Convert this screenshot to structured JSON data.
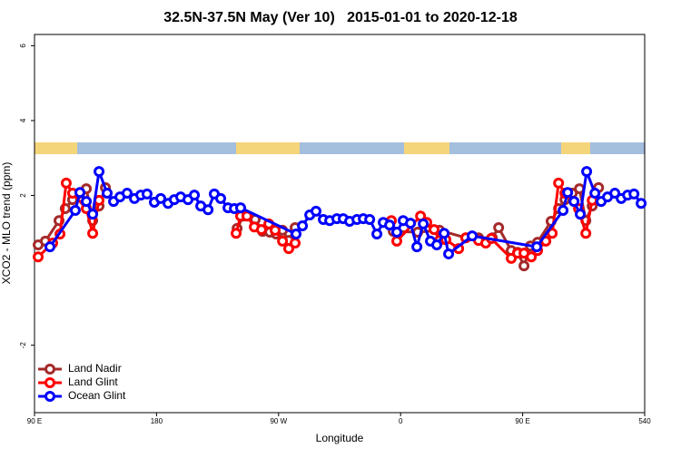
{
  "chart_data": {
    "type": "line",
    "title": "32.5N-37.5N May (Ver 10)   2015-01-01 to 2020-12-18",
    "xlabel": "Longitude",
    "ylabel": "XCO2 - MLO trend (ppm)",
    "xlim": [
      90,
      540
    ],
    "xticks": [
      {
        "value": 90,
        "label": "90 E"
      },
      180,
      {
        "value": 270,
        "label": "90 W"
      },
      {
        "value": 360,
        "label": "0"
      },
      {
        "value": 450,
        "label": "90 E"
      },
      540
    ],
    "ylim": [
      -3.8,
      6.3
    ],
    "yticks": [
      -2,
      2,
      4,
      6
    ],
    "legend": "bottomleft",
    "series": [
      {
        "name": "Land Nadir",
        "color": "#a52a2a",
        "x": [
          92.7,
          98,
          108.1,
          112.7,
          118.1,
          123.5,
          128.2,
          132.9,
          137.6,
          142.3,
          null,
          239.4,
          244.1,
          252.8,
          258.2,
          263.5,
          268.2,
          272.9,
          277.5,
          282.2,
          null,
          354.6,
          372.6,
          388.7,
          408.1,
          417.5,
          427.6,
          432.3,
          441.6,
          446.3,
          451,
          455.7,
          461,
          471,
          476.5,
          481.2,
          486.6,
          491.9,
          496.6,
          501.3,
          506
        ],
        "values": [
          0.68,
          0.78,
          1.33,
          1.65,
          1.89,
          2.06,
          2.18,
          1.33,
          1.72,
          2.21,
          null,
          1.12,
          1.45,
          1.36,
          1.04,
          1.02,
          0.97,
          1.07,
          0.8,
          1.14,
          null,
          1.04,
          1.02,
          1.07,
          0.87,
          0.87,
          0.87,
          1.14,
          0.53,
          0.48,
          0.12,
          0.65,
          0.75,
          1.31,
          1.65,
          1.89,
          2.06,
          2.18,
          1.33,
          1.72,
          2.21
        ]
      },
      {
        "name": "Land Glint",
        "color": "#ff0000",
        "x": [
          92.7,
          103.4,
          108.8,
          113.4,
          118.1,
          128.2,
          132.9,
          137.6,
          null,
          238.7,
          242,
          246.7,
          252.1,
          257.4,
          262.8,
          267.5,
          272.9,
          277.5,
          282.2,
          null,
          353.2,
          357.2,
          374.7,
          379.3,
          384.7,
          388.7,
          393.4,
          402.8,
          408.1,
          417.5,
          422.8,
          426.9,
          441.6,
          446.3,
          451,
          456.4,
          461,
          467.1,
          471.8,
          476.5,
          481.2,
          491.2,
          496.6,
          501.3
        ],
        "values": [
          0.36,
          0.73,
          0.97,
          2.33,
          2.06,
          1.65,
          0.99,
          1.87,
          null,
          0.99,
          1.45,
          1.45,
          1.16,
          1.09,
          1.24,
          1.07,
          0.78,
          0.58,
          0.73,
          null,
          1.33,
          0.78,
          1.45,
          1.28,
          1.09,
          0.8,
          0.82,
          0.58,
          0.87,
          0.8,
          0.73,
          0.85,
          0.32,
          0.46,
          0.46,
          0.36,
          0.53,
          0.78,
          0.99,
          2.33,
          2.06,
          1.65,
          0.99,
          1.87
        ]
      },
      {
        "name": "Ocean Glint",
        "color": "#0000ff",
        "x": [
          101.4,
          120.1,
          123.5,
          128.2,
          132.9,
          137.6,
          143.6,
          148.3,
          153,
          158.3,
          163.7,
          168.4,
          173,
          178.4,
          183.1,
          188.5,
          193.1,
          197.8,
          203.2,
          207.9,
          212.6,
          218,
          222.6,
          227.3,
          232.7,
          237.4,
          242,
          282.9,
          287.6,
          293,
          297.6,
          303,
          307.7,
          313,
          317.7,
          322.4,
          327.8,
          332.5,
          337.2,
          342.5,
          347.2,
          351.9,
          357.2,
          361.9,
          367.3,
          372,
          376.7,
          382,
          386.7,
          392.1,
          395.4,
          412.8,
          460.4,
          479.8,
          483.2,
          487.9,
          492.5,
          497.2,
          503.3,
          507.9,
          512.6,
          518,
          522.7,
          527.4,
          532.1,
          537.4
        ],
        "values": [
          0.63,
          1.6,
          2.08,
          1.84,
          1.5,
          2.64,
          2.06,
          1.84,
          1.96,
          2.06,
          1.92,
          2.01,
          2.04,
          1.82,
          1.92,
          1.79,
          1.89,
          1.96,
          1.89,
          2.01,
          1.72,
          1.62,
          2.04,
          1.92,
          1.67,
          1.65,
          1.67,
          0.97,
          1.19,
          1.48,
          1.58,
          1.36,
          1.33,
          1.38,
          1.38,
          1.31,
          1.36,
          1.38,
          1.36,
          0.97,
          1.28,
          1.21,
          1.02,
          1.33,
          1.26,
          0.63,
          1.24,
          0.78,
          0.68,
          0.99,
          0.44,
          0.92,
          0.63,
          1.6,
          2.08,
          1.84,
          1.5,
          2.64,
          2.06,
          1.84,
          1.96,
          2.06,
          1.92,
          2.01,
          2.04,
          1.79
        ]
      }
    ]
  }
}
